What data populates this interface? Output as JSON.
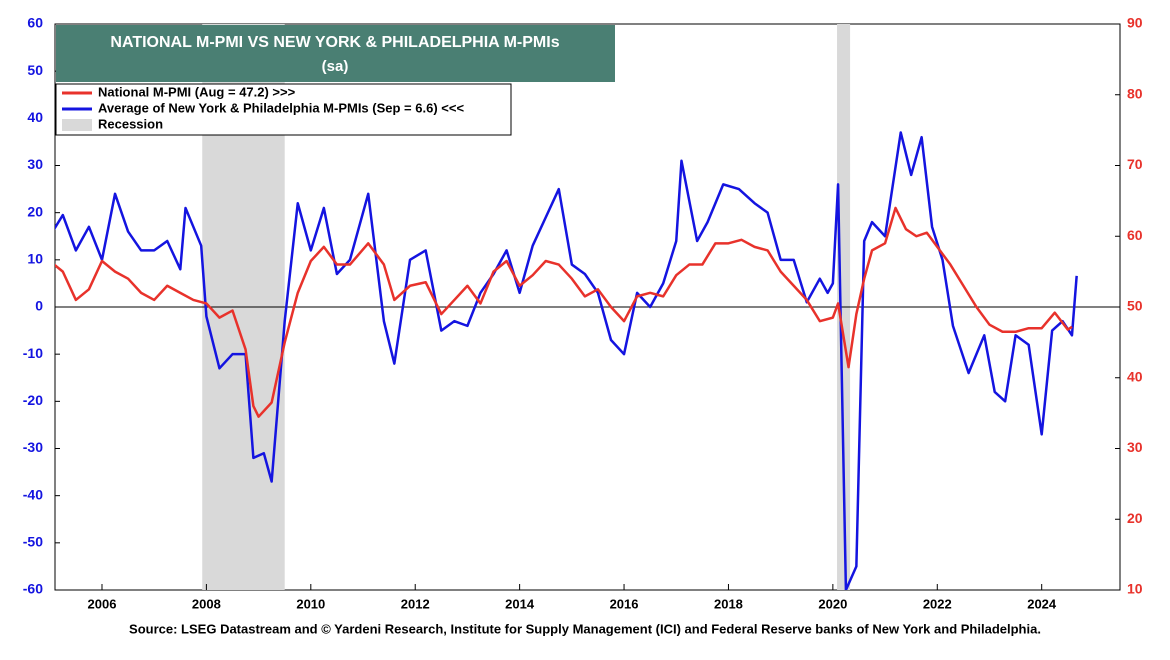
{
  "chart_data": {
    "type": "line",
    "title": "NATIONAL M-PMI VS NEW YORK & PHILADELPHIA M-PMIs",
    "subtitle": "(sa)",
    "source": "Source: LSEG Datastream and © Yardeni Research, Institute for Supply Management (ICI) and Federal Reserve banks of New York and Philadelphia.",
    "recession_label": "Recession",
    "recession_color": "#d9d9d9",
    "recessions": [
      [
        2007.92,
        2009.5
      ],
      [
        2020.08,
        2020.33
      ]
    ],
    "xlim": [
      2005.1,
      2025.5
    ],
    "xticks": [
      2006,
      2008,
      2010,
      2012,
      2014,
      2016,
      2018,
      2020,
      2022,
      2024
    ],
    "ylim": [
      -60,
      60
    ],
    "yticks": [
      -60,
      -50,
      -40,
      -30,
      -20,
      -10,
      0,
      10,
      20,
      30,
      40,
      50,
      60
    ],
    "y2lim": [
      10,
      90
    ],
    "y2ticks": [
      10,
      20,
      30,
      40,
      50,
      60,
      70,
      80,
      90
    ],
    "series": [
      {
        "name": "National M-PMI (Aug = 47.2) >>>",
        "color": "#e8322b",
        "axis": "y2",
        "x": [
          2005.0,
          2005.25,
          2005.5,
          2005.75,
          2006.0,
          2006.25,
          2006.5,
          2006.75,
          2007.0,
          2007.25,
          2007.5,
          2007.75,
          2008.0,
          2008.25,
          2008.5,
          2008.75,
          2008.9,
          2009.0,
          2009.25,
          2009.5,
          2009.75,
          2010.0,
          2010.25,
          2010.5,
          2010.75,
          2011.1,
          2011.4,
          2011.6,
          2011.9,
          2012.2,
          2012.5,
          2012.75,
          2013.0,
          2013.25,
          2013.5,
          2013.75,
          2014.0,
          2014.25,
          2014.5,
          2014.75,
          2015.0,
          2015.25,
          2015.5,
          2015.75,
          2016.0,
          2016.25,
          2016.5,
          2016.75,
          2017.0,
          2017.25,
          2017.5,
          2017.75,
          2018.0,
          2018.25,
          2018.5,
          2018.75,
          2019.0,
          2019.25,
          2019.5,
          2019.75,
          2020.0,
          2020.1,
          2020.3,
          2020.45,
          2020.6,
          2020.75,
          2021.0,
          2021.2,
          2021.4,
          2021.6,
          2021.8,
          2022.0,
          2022.25,
          2022.5,
          2022.75,
          2023.0,
          2023.25,
          2023.5,
          2023.75,
          2024.0,
          2024.25,
          2024.5,
          2024.58
        ],
        "values": [
          56.5,
          55,
          51,
          52.5,
          56.5,
          55,
          54,
          52,
          51,
          53,
          52,
          51,
          50.5,
          48.5,
          49.5,
          44,
          36,
          34.5,
          36.5,
          45,
          52,
          56.5,
          58.5,
          56,
          56,
          59,
          56,
          51,
          53,
          53.5,
          49,
          51,
          53,
          50.5,
          55,
          56.5,
          53,
          54.5,
          56.5,
          56,
          54,
          51.5,
          52.5,
          50,
          48,
          51.5,
          52,
          51.5,
          54.5,
          56,
          56,
          59,
          59,
          59.5,
          58.5,
          58,
          55,
          53,
          51,
          48,
          48.5,
          50.5,
          41.5,
          49,
          54,
          58,
          59,
          64,
          61,
          60,
          60.5,
          58.5,
          56,
          53,
          50,
          47.5,
          46.5,
          46.5,
          47,
          47,
          49.2,
          46.8,
          47.2
        ]
      },
      {
        "name": "Average of New York & Philadelphia M-PMIs (Sep = 6.6) <<<",
        "color": "#1414e0",
        "x": [
          2005.0,
          2005.25,
          2005.5,
          2005.75,
          2006.0,
          2006.25,
          2006.5,
          2006.75,
          2007.0,
          2007.25,
          2007.5,
          2007.6,
          2007.9,
          2008.0,
          2008.25,
          2008.5,
          2008.75,
          2008.9,
          2009.1,
          2009.25,
          2009.5,
          2009.75,
          2010.0,
          2010.25,
          2010.5,
          2010.75,
          2011.1,
          2011.4,
          2011.6,
          2011.9,
          2012.2,
          2012.5,
          2012.75,
          2013.0,
          2013.25,
          2013.5,
          2013.75,
          2014.0,
          2014.25,
          2014.5,
          2014.75,
          2015.0,
          2015.25,
          2015.5,
          2015.75,
          2016.0,
          2016.25,
          2016.5,
          2016.75,
          2017.0,
          2017.1,
          2017.4,
          2017.6,
          2017.9,
          2018.2,
          2018.5,
          2018.75,
          2019.0,
          2019.25,
          2019.5,
          2019.75,
          2019.9,
          2020.0,
          2020.1,
          2020.25,
          2020.45,
          2020.6,
          2020.75,
          2021.0,
          2021.3,
          2021.5,
          2021.7,
          2021.9,
          2022.1,
          2022.3,
          2022.6,
          2022.9,
          2023.1,
          2023.3,
          2023.5,
          2023.75,
          2024.0,
          2024.2,
          2024.4,
          2024.58,
          2024.67
        ],
        "values": [
          15,
          19.5,
          12,
          17,
          10,
          24,
          16,
          12,
          12,
          14,
          8,
          21,
          13,
          -2,
          -13,
          -10,
          -10,
          -32,
          -31,
          -37,
          -3,
          22,
          12,
          21,
          7,
          10,
          24,
          -3,
          -12,
          10,
          12,
          -5,
          -3,
          -4,
          3,
          7,
          12,
          3,
          13,
          19,
          25,
          9,
          7,
          3,
          -7,
          -10,
          3,
          0,
          5,
          14,
          31,
          14,
          18,
          26,
          25,
          22,
          20,
          10,
          10,
          1,
          6,
          3,
          5,
          26,
          -60,
          -55,
          14,
          18,
          15,
          37,
          28,
          36,
          17,
          10,
          -4,
          -14,
          -6,
          -18,
          -20,
          -6,
          -8,
          -27,
          -5,
          -3,
          -6,
          6.6
        ]
      }
    ]
  }
}
